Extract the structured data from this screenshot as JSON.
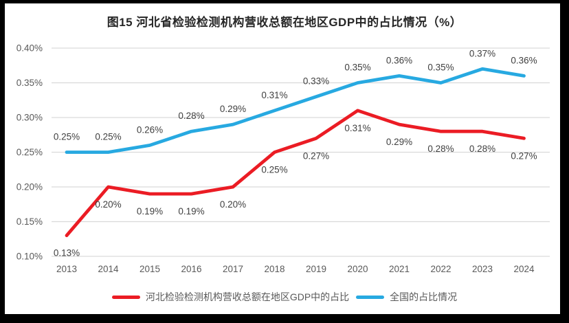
{
  "chart_data": {
    "type": "line",
    "title": "图15 河北省检验检测机构营收总额在地区GDP中的占比情况（%）",
    "categories": [
      "2013",
      "2014",
      "2015",
      "2016",
      "2017",
      "2018",
      "2019",
      "2020",
      "2021",
      "2022",
      "2023",
      "2024"
    ],
    "series": [
      {
        "name": "河北检验检测机构营收总额在地区GDP中的占比",
        "color": "#EB1C24",
        "values": [
          0.13,
          0.2,
          0.19,
          0.19,
          0.2,
          0.25,
          0.27,
          0.31,
          0.29,
          0.28,
          0.28,
          0.27
        ],
        "labels": [
          "0.13%",
          "0.20%",
          "0.19%",
          "0.19%",
          "0.20%",
          "0.25%",
          "0.27%",
          "0.31%",
          "0.29%",
          "0.28%",
          "0.28%",
          "0.27%"
        ],
        "label_position": "below"
      },
      {
        "name": "全国的占比情况",
        "color": "#27A9E1",
        "values": [
          0.25,
          0.25,
          0.26,
          0.28,
          0.29,
          0.31,
          0.33,
          0.35,
          0.36,
          0.35,
          0.37,
          0.36
        ],
        "labels": [
          "0.25%",
          "0.25%",
          "0.26%",
          "0.28%",
          "0.29%",
          "0.31%",
          "0.33%",
          "0.35%",
          "0.36%",
          "0.35%",
          "0.37%",
          "0.36%"
        ],
        "label_position": "above"
      }
    ],
    "y_axis": {
      "ticks": [
        "0.40%",
        "0.35%",
        "0.30%",
        "0.25%",
        "0.20%",
        "0.15%",
        "0.10%"
      ],
      "min": 0.1,
      "max": 0.4,
      "step": 0.05
    },
    "grid": true,
    "legend_position": "bottom",
    "colors": {
      "gridline": "#D9D9D9",
      "axis_text": "#595959",
      "data_label": "#3F3F3F",
      "title_text": "#262626",
      "frame": "#000000",
      "background": "#FFFFFF"
    }
  }
}
